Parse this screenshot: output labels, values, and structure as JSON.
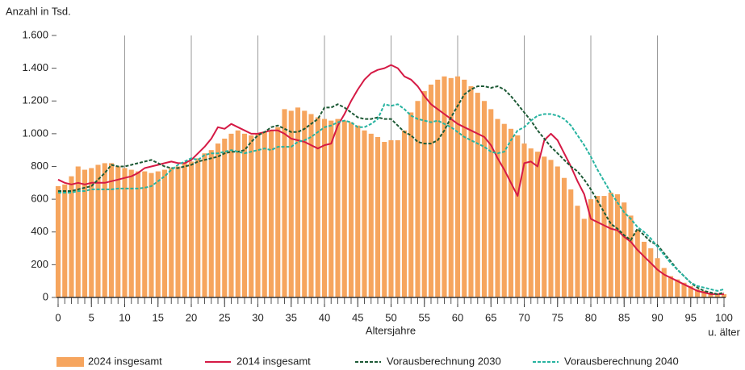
{
  "chart_data": {
    "type": "bar_line",
    "y_label": "Anzahl in Tsd.",
    "x_label": "Altersjahre",
    "x_note": "u. älter",
    "x": [
      0,
      1,
      2,
      3,
      4,
      5,
      6,
      7,
      8,
      9,
      10,
      11,
      12,
      13,
      14,
      15,
      16,
      17,
      18,
      19,
      20,
      21,
      22,
      23,
      24,
      25,
      26,
      27,
      28,
      29,
      30,
      31,
      32,
      33,
      34,
      35,
      36,
      37,
      38,
      39,
      40,
      41,
      42,
      43,
      44,
      45,
      46,
      47,
      48,
      49,
      50,
      51,
      52,
      53,
      54,
      55,
      56,
      57,
      58,
      59,
      60,
      61,
      62,
      63,
      64,
      65,
      66,
      67,
      68,
      69,
      70,
      71,
      72,
      73,
      74,
      75,
      76,
      77,
      78,
      79,
      80,
      81,
      82,
      83,
      84,
      85,
      86,
      87,
      88,
      89,
      90,
      91,
      92,
      93,
      94,
      95,
      96,
      97,
      98,
      99,
      100
    ],
    "xlim": [
      0,
      100
    ],
    "xticks": [
      0,
      5,
      10,
      15,
      20,
      25,
      30,
      35,
      40,
      45,
      50,
      55,
      60,
      65,
      70,
      75,
      80,
      85,
      90,
      95,
      100
    ],
    "ylim": [
      0,
      1600
    ],
    "yticks": [
      0,
      200,
      400,
      600,
      800,
      {
        "value": 1000,
        "label": "1.000"
      },
      {
        "value": 1200,
        "label": "1.200"
      },
      {
        "value": 1400,
        "label": "1.400"
      },
      {
        "value": 1600,
        "label": "1.600"
      }
    ],
    "grid": true,
    "series": [
      {
        "name": "2024 insgesamt",
        "kind": "bar",
        "color": "#f6a55e",
        "values": [
          680,
          690,
          740,
          800,
          780,
          790,
          810,
          820,
          820,
          800,
          790,
          780,
          770,
          770,
          760,
          770,
          780,
          790,
          800,
          820,
          830,
          850,
          880,
          900,
          940,
          970,
          1000,
          1020,
          1000,
          990,
          1000,
          1010,
          1020,
          1040,
          1150,
          1140,
          1160,
          1140,
          1120,
          1100,
          1090,
          1080,
          1090,
          1080,
          1070,
          1050,
          1020,
          1000,
          980,
          950,
          960,
          960,
          1020,
          1130,
          1200,
          1260,
          1300,
          1330,
          1350,
          1340,
          1350,
          1330,
          1290,
          1250,
          1200,
          1150,
          1090,
          1060,
          1030,
          990,
          940,
          910,
          890,
          860,
          840,
          800,
          730,
          660,
          560,
          480,
          600,
          620,
          620,
          640,
          630,
          580,
          500,
          410,
          340,
          300,
          240,
          180,
          130,
          110,
          90,
          70,
          50,
          40,
          30,
          20,
          20
        ]
      },
      {
        "name": "2014 insgesamt",
        "kind": "line",
        "dash": "solid",
        "color": "#d51a45",
        "values": [
          720,
          700,
          690,
          700,
          690,
          700,
          700,
          700,
          710,
          720,
          730,
          740,
          760,
          790,
          800,
          810,
          820,
          830,
          820,
          820,
          840,
          880,
          920,
          970,
          1040,
          1030,
          1060,
          1040,
          1020,
          1000,
          1000,
          1010,
          1020,
          1020,
          1000,
          970,
          960,
          950,
          930,
          910,
          930,
          940,
          1050,
          1120,
          1200,
          1270,
          1330,
          1370,
          1390,
          1400,
          1420,
          1400,
          1350,
          1330,
          1290,
          1230,
          1180,
          1150,
          1120,
          1090,
          1060,
          1040,
          1020,
          1000,
          980,
          930,
          850,
          780,
          700,
          620,
          820,
          830,
          800,
          960,
          1000,
          960,
          880,
          800,
          710,
          630,
          480,
          460,
          440,
          420,
          410,
          370,
          340,
          290,
          250,
          210,
          170,
          140,
          120,
          100,
          80,
          60,
          40,
          30,
          20,
          20,
          20
        ]
      },
      {
        "name": "Vorausberechnung 2030",
        "kind": "line",
        "dash": "dashed",
        "color": "#1d5a36",
        "values": [
          650,
          650,
          650,
          660,
          670,
          680,
          720,
          760,
          810,
          800,
          800,
          810,
          820,
          830,
          840,
          820,
          800,
          790,
          790,
          800,
          810,
          830,
          840,
          850,
          860,
          880,
          890,
          890,
          900,
          950,
          990,
          1010,
          1040,
          1050,
          1030,
          1010,
          1010,
          1030,
          1060,
          1090,
          1160,
          1160,
          1180,
          1160,
          1130,
          1100,
          1090,
          1090,
          1100,
          1090,
          1090,
          1050,
          1010,
          990,
          950,
          940,
          940,
          960,
          1020,
          1100,
          1170,
          1240,
          1270,
          1290,
          1290,
          1280,
          1290,
          1270,
          1230,
          1180,
          1130,
          1080,
          1020,
          970,
          920,
          880,
          840,
          800,
          770,
          720,
          660,
          590,
          520,
          450,
          420,
          380,
          350,
          420,
          380,
          340,
          320,
          270,
          220,
          170,
          130,
          90,
          60,
          40,
          30,
          20,
          30
        ]
      },
      {
        "name": "Vorausberechnung 2040",
        "kind": "line",
        "dash": "dashed",
        "color": "#26b3a0",
        "values": [
          640,
          640,
          640,
          650,
          650,
          660,
          660,
          660,
          660,
          665,
          665,
          665,
          665,
          670,
          680,
          710,
          740,
          780,
          810,
          830,
          850,
          840,
          870,
          880,
          880,
          890,
          900,
          890,
          880,
          890,
          900,
          910,
          900,
          920,
          920,
          920,
          950,
          960,
          980,
          1010,
          1040,
          1050,
          1070,
          1080,
          1070,
          1040,
          1040,
          1060,
          1090,
          1180,
          1170,
          1180,
          1150,
          1110,
          1090,
          1080,
          1070,
          1080,
          1060,
          1040,
          1010,
          980,
          960,
          940,
          920,
          890,
          880,
          890,
          960,
          1020,
          1040,
          1080,
          1110,
          1120,
          1120,
          1110,
          1090,
          1050,
          990,
          930,
          860,
          780,
          710,
          640,
          580,
          520,
          480,
          430,
          400,
          360,
          310,
          260,
          210,
          170,
          130,
          90,
          70,
          60,
          50,
          40,
          50
        ]
      }
    ]
  }
}
